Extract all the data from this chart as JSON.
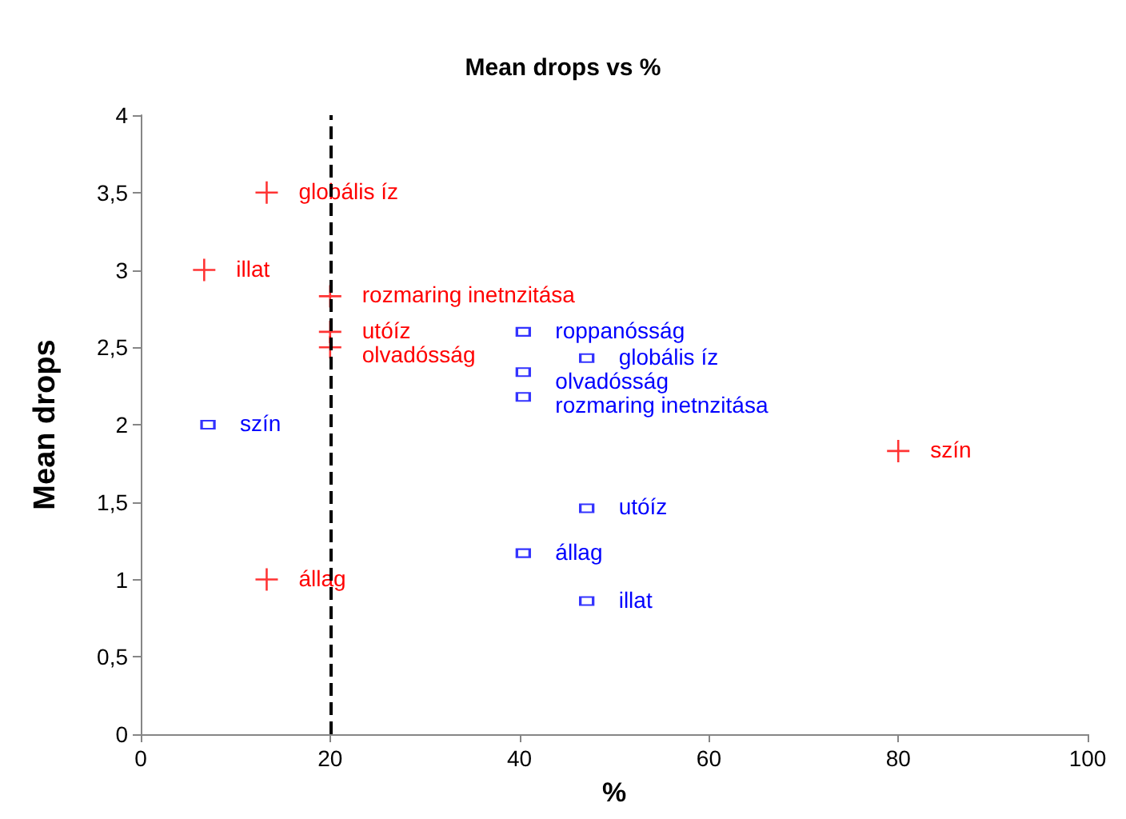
{
  "chart_data": {
    "type": "scatter",
    "title": "Mean drops vs %",
    "xlabel": "%",
    "ylabel": "Mean drops",
    "xlim": [
      0,
      100
    ],
    "xticks": [
      0,
      20,
      40,
      60,
      80,
      100
    ],
    "ylim": [
      0,
      4
    ],
    "yticks": [
      0,
      {
        "value": 0.5,
        "label": "0,5"
      },
      1,
      {
        "value": 1.5,
        "label": "1,5"
      },
      2,
      {
        "value": 2.5,
        "label": "2,5"
      },
      3,
      {
        "value": 3.5,
        "label": "3,5"
      },
      4
    ],
    "grid": false,
    "series": [
      {
        "color": "#ff0000",
        "marker": "cross",
        "x": [
          13.3,
          6.7,
          20,
          20,
          20,
          13.3,
          80
        ],
        "values": [
          3.5,
          3.0,
          2.83,
          2.6,
          2.5,
          1.0,
          1.83
        ]
      },
      {
        "color": "#0000ff",
        "marker": "square",
        "x": [
          7.1,
          40.4,
          47.1,
          40.4,
          40.4,
          47.1,
          40.4,
          47.1
        ],
        "values": [
          2.0,
          2.6,
          2.43,
          2.34,
          2.18,
          1.46,
          1.17,
          0.86
        ]
      }
    ],
    "ref_lines": [
      {
        "axis": "x",
        "value": 20,
        "color": "#000000",
        "line_style": "dashed"
      }
    ],
    "annotations": [
      {
        "text": "globális íz",
        "x": 13.3,
        "y": 3.5
      },
      {
        "text": "illat",
        "x": 6.7,
        "y": 3.0
      },
      {
        "text": "rozmaring inetnzitása",
        "x": 20,
        "y": 2.83
      },
      {
        "text": "utóíz",
        "x": 20,
        "y": 2.6
      },
      {
        "text": "olvadósság",
        "x": 20,
        "y": 2.5
      },
      {
        "text": "állag",
        "x": 13.3,
        "y": 1.0
      },
      {
        "text": "szín",
        "x": 80,
        "y": 1.83
      },
      {
        "text": "szín",
        "x": 7.1,
        "y": 2.0
      },
      {
        "text": "roppanósság",
        "x": 40.4,
        "y": 2.6
      },
      {
        "text": "globális íz",
        "x": 47.1,
        "y": 2.43
      },
      {
        "text": "olvadósság",
        "x": 40.4,
        "y": 2.34
      },
      {
        "text": "rozmaring inetnzitása",
        "x": 40.4,
        "y": 2.18
      },
      {
        "text": "utóíz",
        "x": 47.1,
        "y": 1.46
      },
      {
        "text": "állag",
        "x": 40.4,
        "y": 1.17
      },
      {
        "text": "illat",
        "x": 47.1,
        "y": 0.86
      }
    ]
  }
}
